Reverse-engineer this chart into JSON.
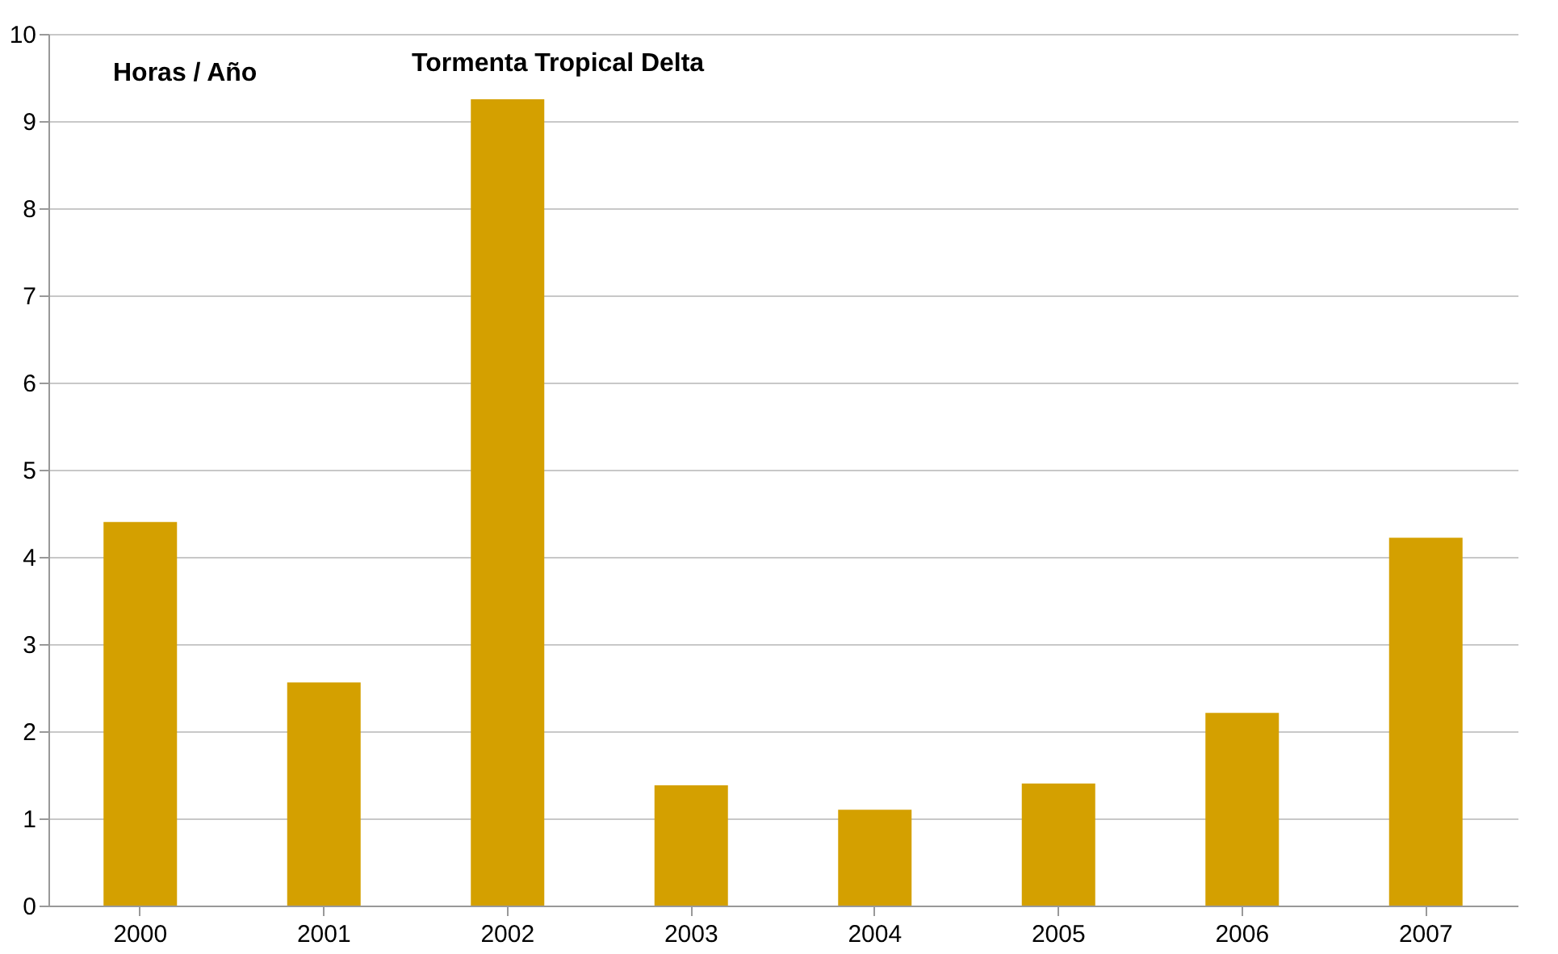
{
  "chart_data": {
    "type": "bar",
    "ylabel": "Horas / Año",
    "categories": [
      "2000",
      "2001",
      "2002",
      "2003",
      "2004",
      "2005",
      "2006",
      "2007"
    ],
    "series": [
      {
        "color": "#d4a000",
        "values": [
          4.4,
          2.56,
          9.25,
          1.38,
          1.1,
          1.4,
          2.21,
          4.22
        ]
      }
    ],
    "ylim": [
      0,
      10
    ],
    "yticks": [
      0,
      1,
      2,
      3,
      4,
      5,
      6,
      7,
      8,
      9,
      10
    ],
    "grid": "y",
    "annotations": [
      "Tormenta Tropical Delta"
    ]
  }
}
